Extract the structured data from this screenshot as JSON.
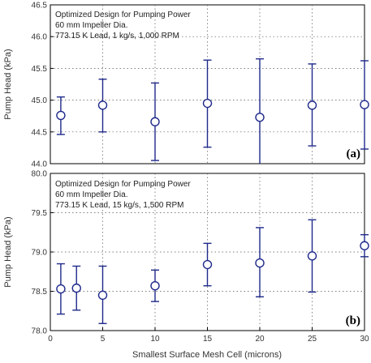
{
  "chart_data": [
    {
      "type": "scatter",
      "panel_label": "(a)",
      "annotations": [
        "Optimized Design for Pumping Power",
        "60 mm Impeller Dia.",
        "773.15 K Lead, 1 kg/s, 1,000 RPM"
      ],
      "ylabel": "Pump Head (kPa)",
      "xlabel": "",
      "xlim": [
        0,
        30
      ],
      "ylim": [
        44.0,
        46.5
      ],
      "x_ticks": [],
      "y_ticks": [
        "44.0",
        "44.5",
        "45.0",
        "45.5",
        "46.0",
        "46.5"
      ],
      "grid": "dotted",
      "series": [
        {
          "marker": "open-circle",
          "color": "#1f2a8a",
          "points": [
            {
              "x": 1,
              "y": 44.76,
              "lo": 44.46,
              "hi": 45.05
            },
            {
              "x": 5,
              "y": 44.92,
              "lo": 44.5,
              "hi": 45.33
            },
            {
              "x": 10,
              "y": 44.66,
              "lo": 44.05,
              "hi": 45.27
            },
            {
              "x": 15,
              "y": 44.95,
              "lo": 44.26,
              "hi": 45.63
            },
            {
              "x": 20,
              "y": 44.73,
              "lo": 43.82,
              "hi": 45.65
            },
            {
              "x": 25,
              "y": 44.92,
              "lo": 44.28,
              "hi": 45.57
            },
            {
              "x": 30,
              "y": 44.93,
              "lo": 44.23,
              "hi": 45.62
            }
          ]
        }
      ]
    },
    {
      "type": "scatter",
      "panel_label": "(b)",
      "annotations": [
        "Optimized Design for Pumping Power",
        "60 mm Impeller Dia.",
        "773.15 K Lead, 15 kg/s, 1,500 RPM"
      ],
      "ylabel": "Pump Head (kPa)",
      "xlabel": "Smallest Surface Mesh Cell (microns)",
      "xlim": [
        0,
        30
      ],
      "ylim": [
        78.0,
        80.0
      ],
      "x_ticks": [
        "0",
        "5",
        "10",
        "15",
        "20",
        "25",
        "30"
      ],
      "y_ticks": [
        "78.0",
        "78.5",
        "79.0",
        "79.5",
        "80.0"
      ],
      "grid": "dotted",
      "series": [
        {
          "marker": "open-circle",
          "color": "#1f2a8a",
          "points": [
            {
              "x": 1,
              "y": 78.53,
              "lo": 78.21,
              "hi": 78.85
            },
            {
              "x": 2.5,
              "y": 78.54,
              "lo": 78.26,
              "hi": 78.82
            },
            {
              "x": 5,
              "y": 78.45,
              "lo": 78.09,
              "hi": 78.82
            },
            {
              "x": 10,
              "y": 78.57,
              "lo": 78.37,
              "hi": 78.77
            },
            {
              "x": 15,
              "y": 78.84,
              "lo": 78.57,
              "hi": 79.11
            },
            {
              "x": 20,
              "y": 78.86,
              "lo": 78.43,
              "hi": 79.31
            },
            {
              "x": 25,
              "y": 78.95,
              "lo": 78.49,
              "hi": 79.41
            },
            {
              "x": 30,
              "y": 79.08,
              "lo": 78.94,
              "hi": 79.22
            }
          ]
        }
      ]
    }
  ]
}
